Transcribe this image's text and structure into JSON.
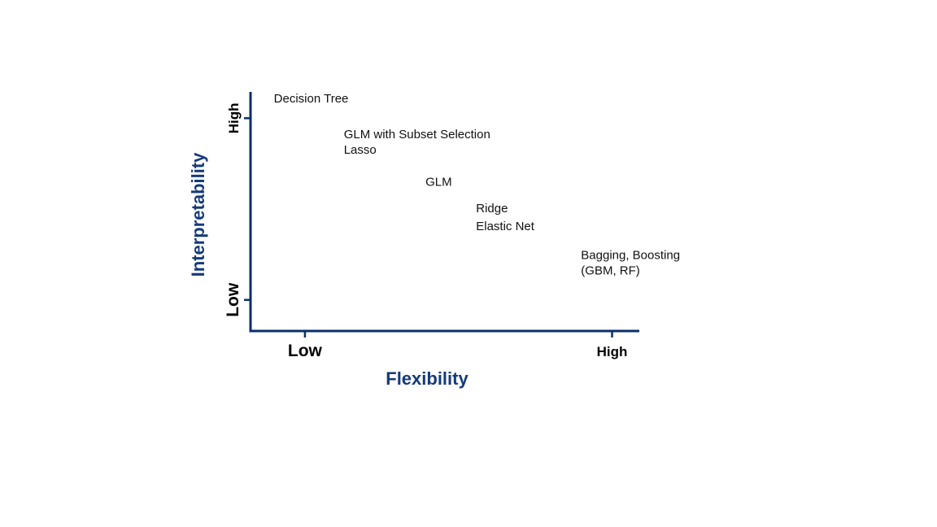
{
  "chart_data": {
    "type": "scatter",
    "title": "",
    "xlabel": "Flexibility",
    "ylabel": "Interpretability",
    "xlim": [
      0,
      1
    ],
    "ylim": [
      0,
      1
    ],
    "x_ticks": [
      {
        "label": "Low",
        "value": 0.14
      },
      {
        "label": "High",
        "value": 0.93
      }
    ],
    "y_ticks": [
      {
        "label": "Low",
        "value": 0.13
      },
      {
        "label": "High",
        "value": 0.89
      }
    ],
    "points": [
      {
        "label": "Decision Tree",
        "x": 0.06,
        "y": 0.97
      },
      {
        "label": "GLM with Subset Selection",
        "x": 0.24,
        "y": 0.82
      },
      {
        "label": "Lasso",
        "x": 0.24,
        "y": 0.755
      },
      {
        "label": "GLM",
        "x": 0.45,
        "y": 0.62
      },
      {
        "label": "Ridge",
        "x": 0.58,
        "y": 0.51
      },
      {
        "label": "Elastic Net",
        "x": 0.58,
        "y": 0.435
      },
      {
        "label": "Bagging, Boosting",
        "x": 0.85,
        "y": 0.315
      },
      {
        "label": "(GBM, RF)",
        "x": 0.85,
        "y": 0.25
      }
    ],
    "grid": false,
    "legend": "none"
  },
  "colors": {
    "axis": "#0b2f6b",
    "axis_label": "#153a7a",
    "tick_label": "#000000",
    "text": "#111111"
  }
}
